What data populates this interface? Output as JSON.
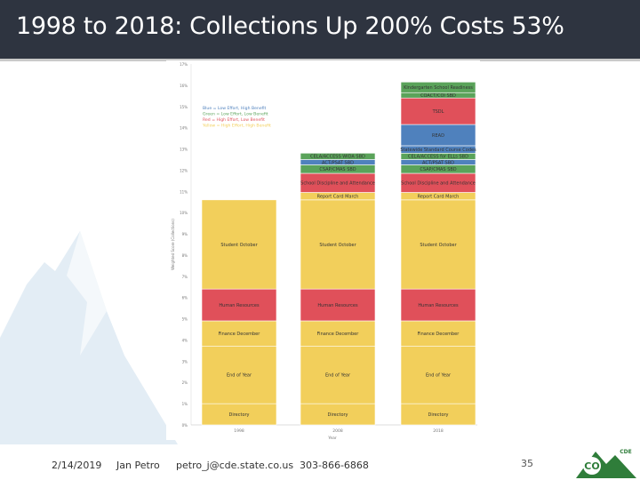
{
  "slide": {
    "title": "1998 to 2018: Collections Up 200% Costs 53%",
    "page_number": "35"
  },
  "footer": {
    "date": "2/14/2019",
    "presenter": "Jan Petro",
    "email": "petro_j@cde.state.co.us",
    "phone": "303-866-6868"
  },
  "logo": {
    "text": "CO",
    "small_text": "CDE"
  },
  "colors": {
    "blue": "#4f81bd",
    "green": "#5aa35a",
    "red": "#e0505a",
    "yellow": "#f2cf5b",
    "title_bar": "#2e3440"
  },
  "chart_data": {
    "type": "bar",
    "stacked": true,
    "xlabel": "Year",
    "ylabel": "Weighted Score (Collections)",
    "categories": [
      "1998",
      "2008",
      "2018"
    ],
    "ylim": [
      0,
      17
    ],
    "yticks": [
      0,
      1,
      2,
      3,
      4,
      5,
      6,
      7,
      8,
      9,
      10,
      11,
      12,
      13,
      14,
      15,
      16,
      17
    ],
    "ytick_labels": [
      "0%",
      "1%",
      "2%",
      "3%",
      "4%",
      "5%",
      "6%",
      "7%",
      "8%",
      "9%",
      "10%",
      "11%",
      "12%",
      "13%",
      "14%",
      "15%",
      "16%",
      "17%"
    ],
    "legend": {
      "placement": "top-left",
      "entries": [
        {
          "label": "Blue = Low Effort, High Benefit",
          "color_key": "blue"
        },
        {
          "label": "Green = Low Effort, Low Benefit",
          "color_key": "green"
        },
        {
          "label": "Red = High Effort, Low Benefit",
          "color_key": "red"
        },
        {
          "label": "Yellow = High Effort, High Benefit",
          "color_key": "yellow"
        }
      ]
    },
    "bars": [
      {
        "category": "1998",
        "segments": [
          {
            "label": "Directory",
            "color_key": "yellow",
            "value": 1.0
          },
          {
            "label": "End of Year",
            "color_key": "yellow",
            "value": 2.7
          },
          {
            "label": "Finance December",
            "color_key": "yellow",
            "value": 1.2
          },
          {
            "label": "Human Resources",
            "color_key": "red",
            "value": 1.5
          },
          {
            "label": "Student October",
            "color_key": "yellow",
            "value": 4.2
          }
        ]
      },
      {
        "category": "2008",
        "segments": [
          {
            "label": "Directory",
            "color_key": "yellow",
            "value": 1.0
          },
          {
            "label": "End of Year",
            "color_key": "yellow",
            "value": 2.7
          },
          {
            "label": "Finance December",
            "color_key": "yellow",
            "value": 1.2
          },
          {
            "label": "Human Resources",
            "color_key": "red",
            "value": 1.5
          },
          {
            "label": "Student October",
            "color_key": "yellow",
            "value": 4.2
          },
          {
            "label": "Report Card March",
            "color_key": "yellow",
            "value": 0.35
          },
          {
            "label": "School Discipline and Attendance",
            "color_key": "red",
            "value": 0.9
          },
          {
            "label": "CSAP/CMAS SBD",
            "color_key": "green",
            "value": 0.4
          },
          {
            "label": "ACT/PSAT SBD",
            "color_key": "blue",
            "value": 0.25
          },
          {
            "label": "CELA/ACCESS WIDA SBD",
            "color_key": "green",
            "value": 0.3
          }
        ]
      },
      {
        "category": "2018",
        "segments": [
          {
            "label": "Directory",
            "color_key": "yellow",
            "value": 1.0
          },
          {
            "label": "End of Year",
            "color_key": "yellow",
            "value": 2.7
          },
          {
            "label": "Finance December",
            "color_key": "yellow",
            "value": 1.2
          },
          {
            "label": "Human Resources",
            "color_key": "red",
            "value": 1.5
          },
          {
            "label": "Student October",
            "color_key": "yellow",
            "value": 4.2
          },
          {
            "label": "Report Card March",
            "color_key": "yellow",
            "value": 0.35
          },
          {
            "label": "School Discipline and Attendance",
            "color_key": "red",
            "value": 0.9
          },
          {
            "label": "CSAP/CMAS SBD",
            "color_key": "green",
            "value": 0.4
          },
          {
            "label": "ACT/PSAT SBD",
            "color_key": "blue",
            "value": 0.25
          },
          {
            "label": "CELA/ACCESS for ELLs SBD",
            "color_key": "green",
            "value": 0.3
          },
          {
            "label": "Statewide Standard Course Codes",
            "color_key": "blue",
            "value": 0.35
          },
          {
            "label": "READ",
            "color_key": "blue",
            "value": 1.0
          },
          {
            "label": "TSDL",
            "color_key": "red",
            "value": 1.25
          },
          {
            "label": "COACT/COI SBD",
            "color_key": "green",
            "value": 0.25
          },
          {
            "label": "Kindergarten School Readiness",
            "color_key": "green",
            "value": 0.5
          }
        ]
      }
    ]
  }
}
